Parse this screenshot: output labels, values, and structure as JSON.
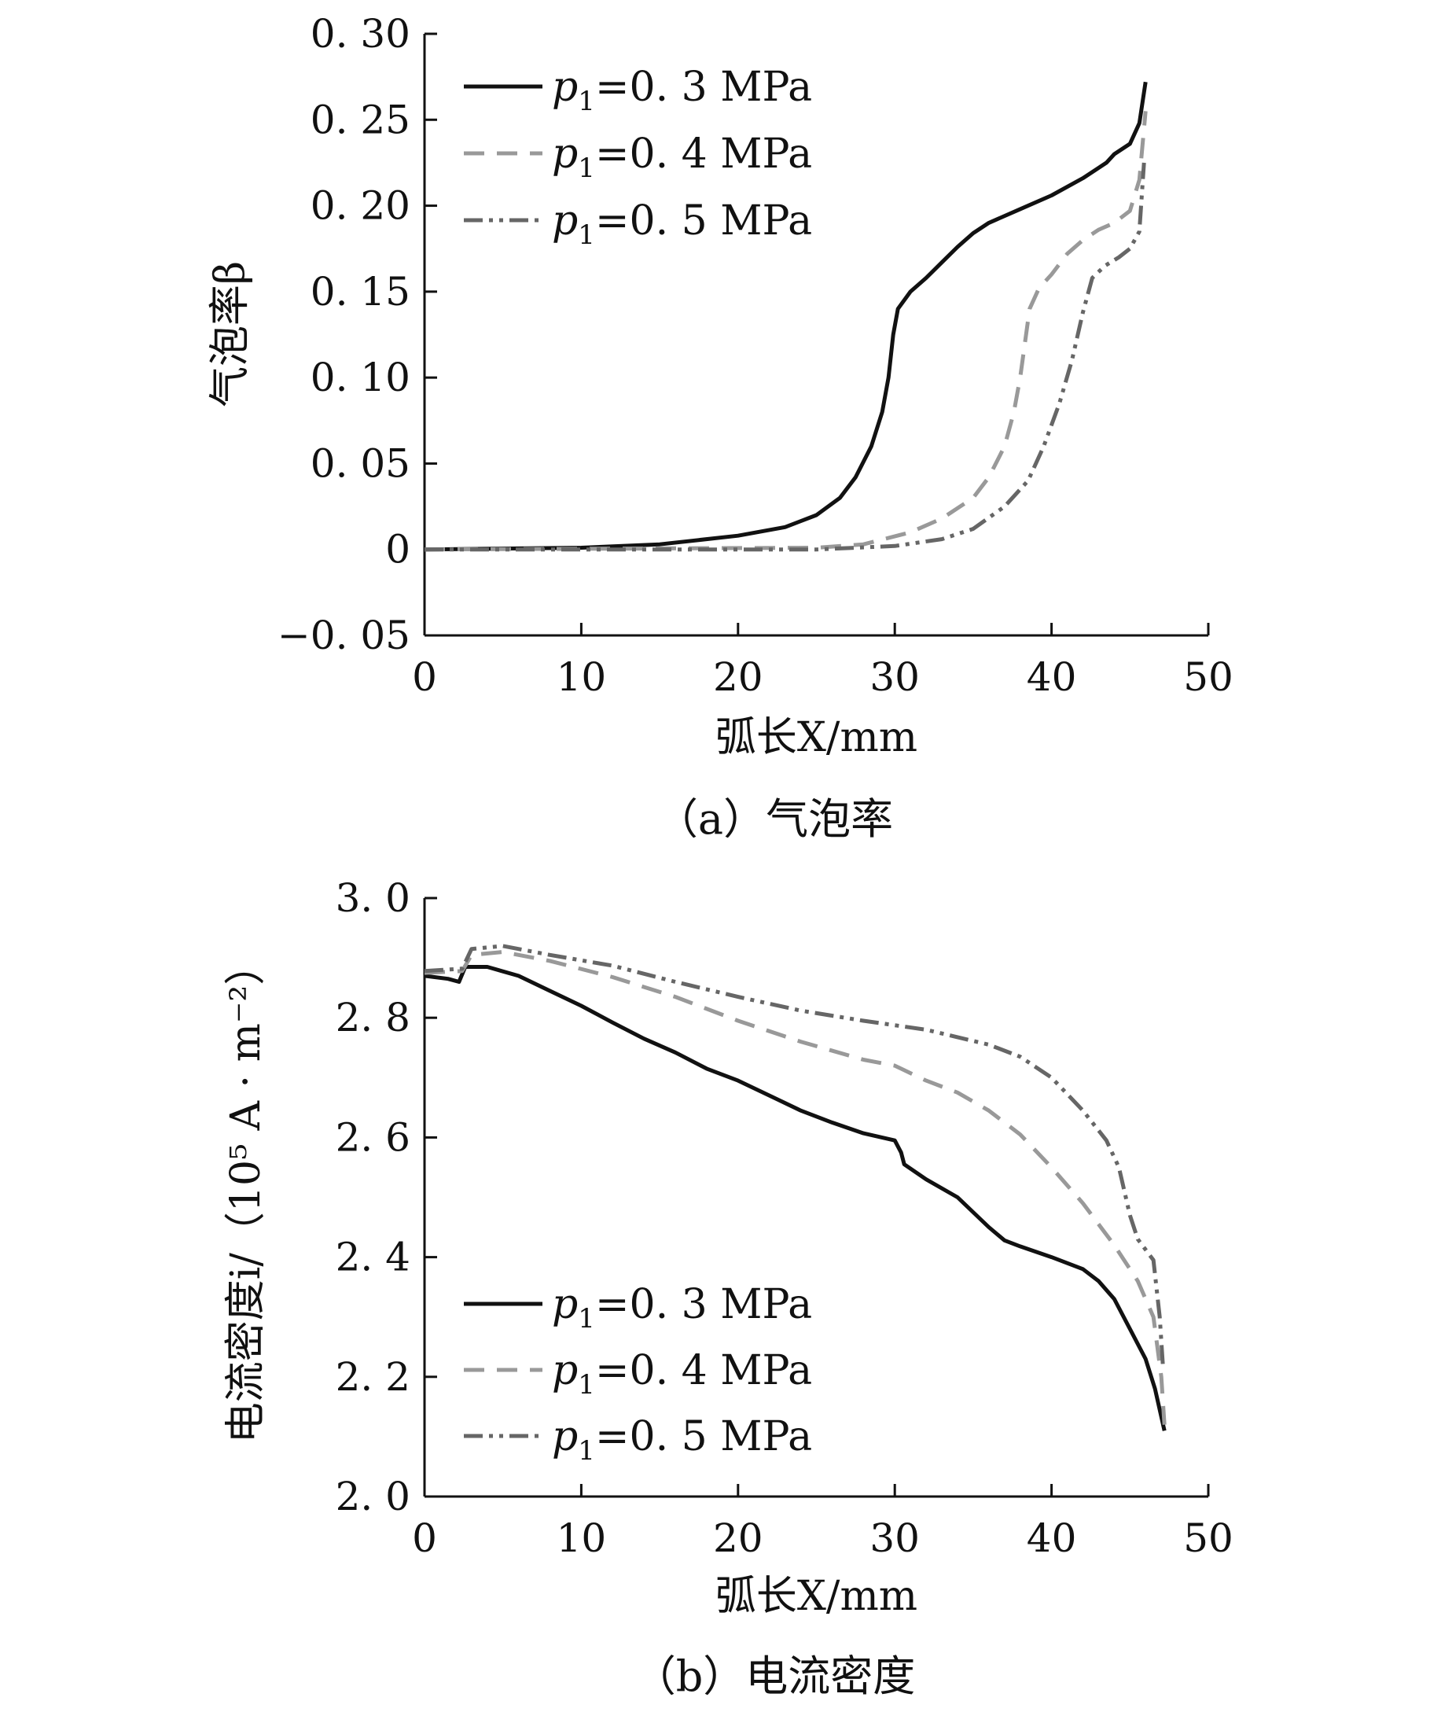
{
  "chart_data": [
    {
      "type": "line",
      "caption": "（a）气泡率",
      "ylabel": "气泡率β",
      "xlabel": "弧长X/mm",
      "xlim": [
        0,
        50
      ],
      "ylim": [
        -0.05,
        0.3
      ],
      "xticks": [
        0,
        10,
        20,
        30,
        40,
        50
      ],
      "xtick_labels": [
        "0",
        "10",
        "20",
        "30",
        "40",
        "50"
      ],
      "yticks": [
        -0.05,
        0,
        0.05,
        0.1,
        0.15,
        0.2,
        0.25,
        0.3
      ],
      "ytick_labels": [
        "−0. 05",
        "0",
        "0. 05",
        "0. 10",
        "0. 15",
        "0. 20",
        "0. 25",
        "0. 30"
      ],
      "legend_position": "top-left",
      "series": [
        {
          "name": "p1=0.3 MPa",
          "label_italic": "p",
          "label_sub": "1",
          "label_rest": "=0. 3  MPa",
          "color": "#111111",
          "dash": "",
          "points": [
            [
              0,
              0
            ],
            [
              10,
              0.001
            ],
            [
              15,
              0.003
            ],
            [
              20,
              0.008
            ],
            [
              23,
              0.013
            ],
            [
              25,
              0.02
            ],
            [
              26.5,
              0.03
            ],
            [
              27.5,
              0.042
            ],
            [
              28.5,
              0.06
            ],
            [
              29.2,
              0.08
            ],
            [
              29.6,
              0.1
            ],
            [
              29.9,
              0.125
            ],
            [
              30.2,
              0.14
            ],
            [
              31,
              0.15
            ],
            [
              32,
              0.158
            ],
            [
              33,
              0.167
            ],
            [
              34,
              0.176
            ],
            [
              35,
              0.184
            ],
            [
              36,
              0.19
            ],
            [
              38,
              0.198
            ],
            [
              40,
              0.206
            ],
            [
              42,
              0.216
            ],
            [
              43.5,
              0.225
            ],
            [
              44,
              0.23
            ],
            [
              45,
              0.236
            ],
            [
              45.6,
              0.248
            ],
            [
              46,
              0.272
            ]
          ]
        },
        {
          "name": "p1=0.4 MPa",
          "label_italic": "p",
          "label_sub": "1",
          "label_rest": "=0. 4  MPa",
          "color": "#999999",
          "dash": "26 16",
          "points": [
            [
              0,
              0
            ],
            [
              25,
              0.001
            ],
            [
              28,
              0.003
            ],
            [
              31,
              0.01
            ],
            [
              33,
              0.018
            ],
            [
              35,
              0.03
            ],
            [
              36,
              0.042
            ],
            [
              37,
              0.06
            ],
            [
              37.6,
              0.08
            ],
            [
              38,
              0.1
            ],
            [
              38.3,
              0.12
            ],
            [
              38.6,
              0.14
            ],
            [
              39.2,
              0.152
            ],
            [
              40,
              0.16
            ],
            [
              41,
              0.172
            ],
            [
              42,
              0.18
            ],
            [
              43,
              0.186
            ],
            [
              44,
              0.19
            ],
            [
              45,
              0.197
            ],
            [
              45.6,
              0.215
            ],
            [
              46,
              0.255
            ]
          ]
        },
        {
          "name": "p1=0.5 MPa",
          "label_italic": "p",
          "label_sub": "1",
          "label_rest": "=0. 5  MPa",
          "color": "#666666",
          "dash": "24 8 5 8 5 8",
          "points": [
            [
              0,
              0
            ],
            [
              25,
              0
            ],
            [
              30,
              0.002
            ],
            [
              33,
              0.006
            ],
            [
              35,
              0.012
            ],
            [
              37,
              0.025
            ],
            [
              38.5,
              0.04
            ],
            [
              39.5,
              0.06
            ],
            [
              40.5,
              0.085
            ],
            [
              41.3,
              0.11
            ],
            [
              42,
              0.138
            ],
            [
              42.6,
              0.158
            ],
            [
              43.4,
              0.165
            ],
            [
              44.3,
              0.17
            ],
            [
              45,
              0.175
            ],
            [
              45.6,
              0.185
            ],
            [
              45.9,
              0.225
            ]
          ]
        }
      ]
    },
    {
      "type": "line",
      "caption": "（b）电流密度",
      "ylabel": "电流密度i/（10⁵ A · m⁻²）",
      "xlabel": "弧长X/mm",
      "xlim": [
        0,
        50
      ],
      "ylim": [
        2.0,
        3.0
      ],
      "xticks": [
        0,
        10,
        20,
        30,
        40,
        50
      ],
      "xtick_labels": [
        "0",
        "10",
        "20",
        "30",
        "40",
        "50"
      ],
      "yticks": [
        2.0,
        2.2,
        2.4,
        2.6,
        2.8,
        3.0
      ],
      "ytick_labels": [
        "2. 0",
        "2. 2",
        "2. 4",
        "2. 6",
        "2. 8",
        "3. 0"
      ],
      "legend_position": "bottom-left",
      "series": [
        {
          "name": "p1=0.3 MPa",
          "label_italic": "p",
          "label_sub": "1",
          "label_rest": "=0. 3  MPa",
          "color": "#111111",
          "dash": "",
          "points": [
            [
              0,
              2.87
            ],
            [
              1.5,
              2.865
            ],
            [
              2.2,
              2.86
            ],
            [
              2.6,
              2.885
            ],
            [
              4,
              2.885
            ],
            [
              6,
              2.87
            ],
            [
              8,
              2.845
            ],
            [
              10,
              2.82
            ],
            [
              12,
              2.792
            ],
            [
              14,
              2.765
            ],
            [
              16,
              2.742
            ],
            [
              18,
              2.715
            ],
            [
              20,
              2.695
            ],
            [
              22,
              2.67
            ],
            [
              24,
              2.645
            ],
            [
              26,
              2.625
            ],
            [
              28,
              2.607
            ],
            [
              30,
              2.595
            ],
            [
              30.4,
              2.575
            ],
            [
              30.6,
              2.555
            ],
            [
              32,
              2.53
            ],
            [
              34,
              2.5
            ],
            [
              35,
              2.475
            ],
            [
              36,
              2.45
            ],
            [
              37,
              2.428
            ],
            [
              38,
              2.418
            ],
            [
              40,
              2.4
            ],
            [
              42,
              2.38
            ],
            [
              43,
              2.36
            ],
            [
              44,
              2.33
            ],
            [
              45,
              2.28
            ],
            [
              46,
              2.23
            ],
            [
              46.6,
              2.18
            ],
            [
              47.2,
              2.11
            ]
          ]
        },
        {
          "name": "p1=0.4 MPa",
          "label_italic": "p",
          "label_sub": "1",
          "label_rest": "=0. 4  MPa",
          "color": "#999999",
          "dash": "26 16",
          "points": [
            [
              0,
              2.875
            ],
            [
              2.4,
              2.878
            ],
            [
              3,
              2.905
            ],
            [
              5,
              2.91
            ],
            [
              8,
              2.895
            ],
            [
              12,
              2.868
            ],
            [
              16,
              2.835
            ],
            [
              20,
              2.795
            ],
            [
              24,
              2.76
            ],
            [
              28,
              2.73
            ],
            [
              30,
              2.72
            ],
            [
              32,
              2.695
            ],
            [
              34,
              2.675
            ],
            [
              36,
              2.645
            ],
            [
              38,
              2.605
            ],
            [
              40,
              2.55
            ],
            [
              42,
              2.49
            ],
            [
              44,
              2.42
            ],
            [
              45.5,
              2.36
            ],
            [
              46.5,
              2.3
            ],
            [
              47,
              2.2
            ],
            [
              47.2,
              2.12
            ]
          ]
        },
        {
          "name": "p1=0.5 MPa",
          "label_italic": "p",
          "label_sub": "1",
          "label_rest": "=0. 5  MPa",
          "color": "#666666",
          "dash": "24 8 5 8 5 8",
          "points": [
            [
              0,
              2.878
            ],
            [
              2.4,
              2.882
            ],
            [
              3,
              2.915
            ],
            [
              5,
              2.92
            ],
            [
              8,
              2.905
            ],
            [
              12,
              2.887
            ],
            [
              16,
              2.86
            ],
            [
              20,
              2.835
            ],
            [
              24,
              2.812
            ],
            [
              28,
              2.795
            ],
            [
              32,
              2.78
            ],
            [
              36,
              2.755
            ],
            [
              38,
              2.735
            ],
            [
              40,
              2.7
            ],
            [
              42,
              2.645
            ],
            [
              43.5,
              2.595
            ],
            [
              44.3,
              2.55
            ],
            [
              45,
              2.47
            ],
            [
              45.5,
              2.43
            ],
            [
              46.5,
              2.395
            ],
            [
              46.9,
              2.3
            ],
            [
              47.1,
              2.22
            ]
          ]
        }
      ]
    }
  ]
}
